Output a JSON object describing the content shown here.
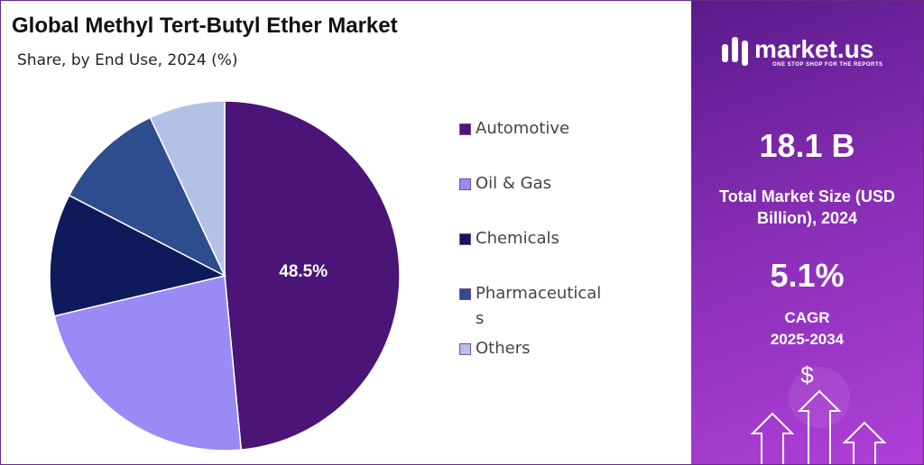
{
  "chart_data": {
    "type": "pie",
    "title": "Global Methyl Tert-Butyl Ether Market",
    "subtitle": "Share, by End Use, 2024 (%)",
    "categories": [
      "Automotive",
      "Oil & Gas",
      "Chemicals",
      "Pharmaceuticals",
      "Others"
    ],
    "values": [
      48.5,
      22.8,
      11.3,
      10.4,
      7.0
    ],
    "value_labels": [
      "48.5%",
      null,
      null,
      null,
      null
    ],
    "colors": [
      "#4a1576",
      "#9a8af5",
      "#0e1a5a",
      "#2d4d8f",
      "#b3c2e4"
    ],
    "legend": "right"
  },
  "panel": {
    "brand": "market.us",
    "tagline": "ONE STOP SHOP FOR THE REPORTS",
    "market_size": "18.1 B",
    "market_size_label": "Total Market Size (USD Billion), 2024",
    "cagr": "5.1%",
    "cagr_label": "CAGR 2025-2034",
    "icon_symbol": "$"
  }
}
